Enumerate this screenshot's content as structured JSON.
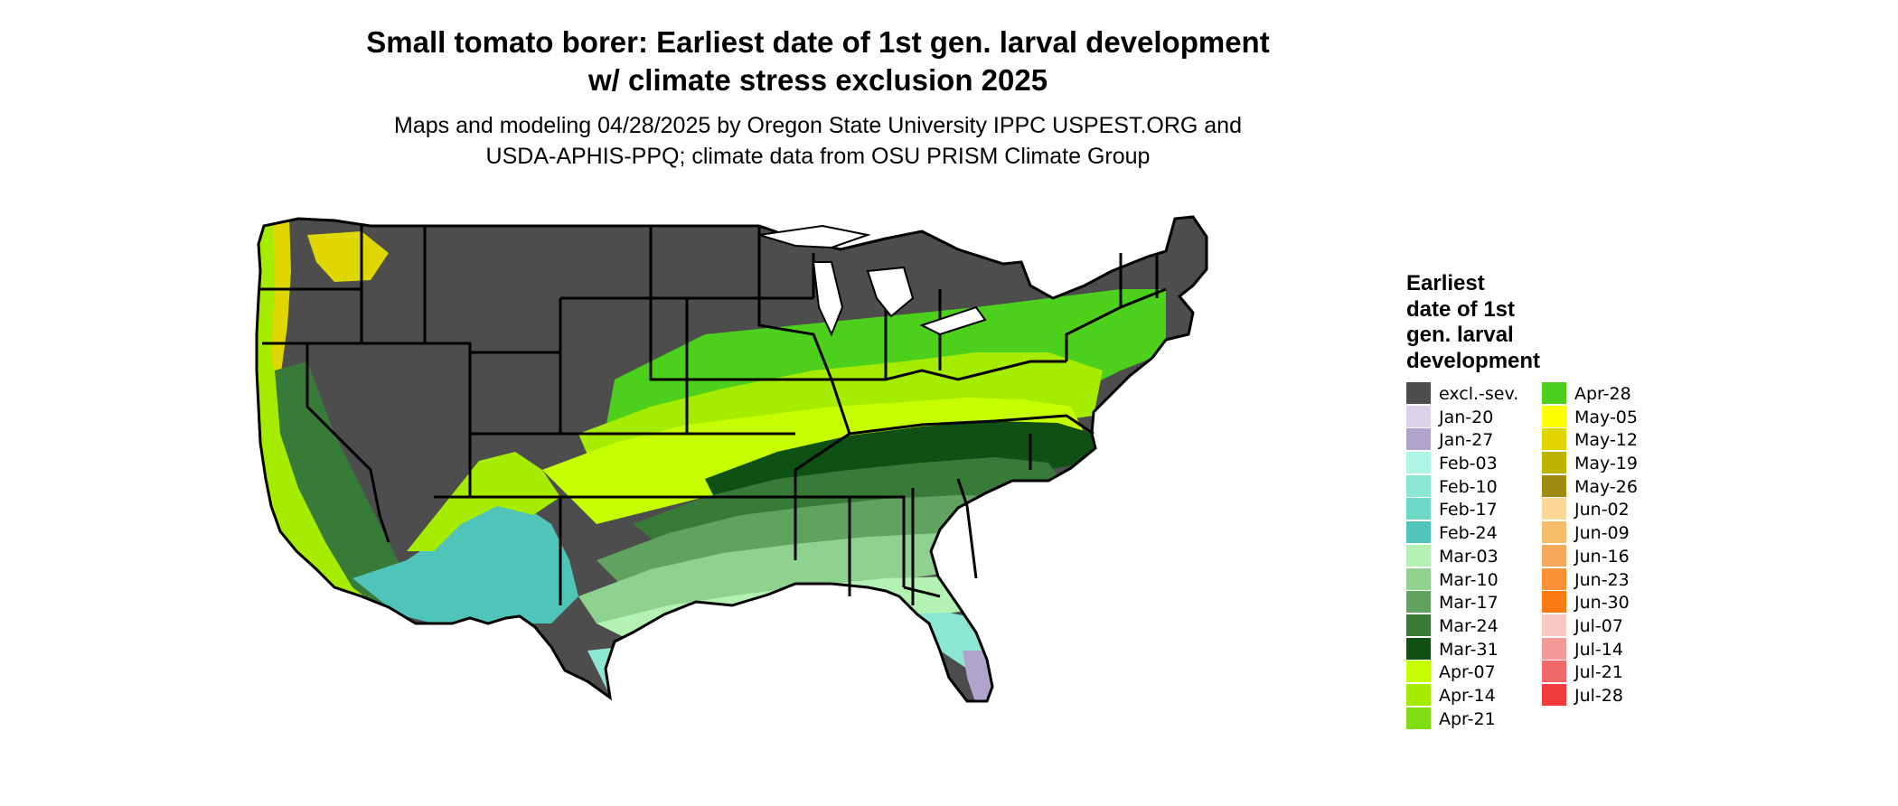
{
  "title_line1": "Small tomato borer: Earliest date of 1st gen. larval development",
  "title_line2": "w/ climate stress exclusion 2025",
  "subtitle_line1": "Maps and modeling 04/28/2025 by Oregon State University IPPC USPEST.ORG and",
  "subtitle_line2": "USDA-APHIS-PPQ; climate data from OSU PRISM Climate Group",
  "legend": {
    "title_lines": [
      "Earliest",
      "date of 1st",
      "gen. larval",
      "development"
    ],
    "col1": [
      {
        "label": "excl.-sev.",
        "color": "#4d4d4d"
      },
      {
        "label": "Jan-20",
        "color": "#dcd3ea"
      },
      {
        "label": "Jan-27",
        "color": "#b1a4cc"
      },
      {
        "label": "Feb-03",
        "color": "#aef5e5"
      },
      {
        "label": "Feb-10",
        "color": "#8ce6d4"
      },
      {
        "label": "Feb-17",
        "color": "#6fd9c8"
      },
      {
        "label": "Feb-24",
        "color": "#4fc4b8"
      },
      {
        "label": "Mar-03",
        "color": "#b3f2b3"
      },
      {
        "label": "Mar-10",
        "color": "#8fd18f"
      },
      {
        "label": "Mar-17",
        "color": "#5fa35f"
      },
      {
        "label": "Mar-24",
        "color": "#387a38"
      },
      {
        "label": "Mar-31",
        "color": "#0f5014"
      },
      {
        "label": "Apr-07",
        "color": "#c6ff00"
      },
      {
        "label": "Apr-14",
        "color": "#a6ec00"
      },
      {
        "label": "Apr-21",
        "color": "#80dd14"
      }
    ],
    "col2": [
      {
        "label": "Apr-28",
        "color": "#4cd01c"
      },
      {
        "label": "May-05",
        "color": "#ffff00"
      },
      {
        "label": "May-12",
        "color": "#e0d600"
      },
      {
        "label": "May-19",
        "color": "#c0b200"
      },
      {
        "label": "May-26",
        "color": "#a08b10"
      },
      {
        "label": "Jun-02",
        "color": "#fcd898"
      },
      {
        "label": "Jun-09",
        "color": "#f8bd6c"
      },
      {
        "label": "Jun-16",
        "color": "#f8a85a"
      },
      {
        "label": "Jun-23",
        "color": "#fb9336"
      },
      {
        "label": "Jun-30",
        "color": "#fa7b12"
      },
      {
        "label": "Jul-07",
        "color": "#f8c8c4"
      },
      {
        "label": "Jul-14",
        "color": "#f49a98"
      },
      {
        "label": "Jul-21",
        "color": "#f06868"
      },
      {
        "label": "Jul-28",
        "color": "#f23c3c"
      }
    ]
  },
  "map": {
    "background_color": "#ffffff",
    "outline_color": "#000000"
  }
}
